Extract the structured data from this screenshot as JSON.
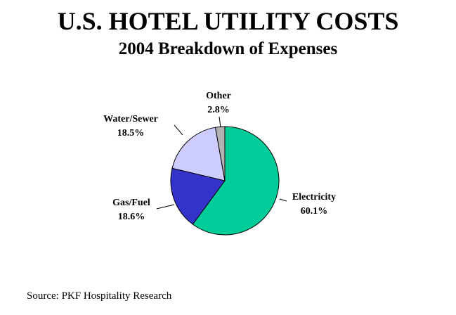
{
  "chart_data": {
    "type": "pie",
    "title": "U.S. HOTEL UTILITY COSTS",
    "subtitle": "2004 Breakdown of Expenses",
    "slices": [
      {
        "name": "Electricity",
        "value": 60.1,
        "label": "60.1%",
        "color": "#00cc99"
      },
      {
        "name": "Gas/Fuel",
        "value": 18.6,
        "label": "18.6%",
        "color": "#3333cc"
      },
      {
        "name": "Water/Sewer",
        "value": 18.5,
        "label": "18.5%",
        "color": "#ccccff"
      },
      {
        "name": "Other",
        "value": 2.8,
        "label": "2.8%",
        "color": "#b2b2b2"
      }
    ],
    "start": "12 o'clock, clockwise",
    "legend": "none (labels next to slices)"
  },
  "footer": {
    "source": "Source: PKF Hospitality Research"
  }
}
